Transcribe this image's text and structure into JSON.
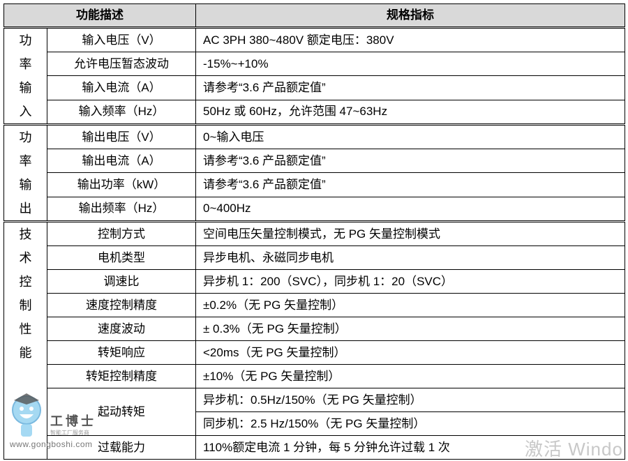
{
  "header": {
    "col1": "功能描述",
    "col2": "规格指标"
  },
  "groups": [
    {
      "label": [
        "功",
        "率",
        "输",
        "入"
      ],
      "rows": [
        {
          "name": "输入电压（V）",
          "value": "AC 3PH 380~480V 额定电压：380V"
        },
        {
          "name": "允许电压暂态波动",
          "value": "-15%~+10%"
        },
        {
          "name": "输入电流（A）",
          "value": "请参考“3.6 产品额定值”"
        },
        {
          "name": "输入频率（Hz）",
          "value": "50Hz 或 60Hz，允许范围 47~63Hz"
        }
      ]
    },
    {
      "label": [
        "功",
        "率",
        "输",
        "出"
      ],
      "rows": [
        {
          "name": "输出电压（V）",
          "value": "0~输入电压"
        },
        {
          "name": "输出电流（A）",
          "value": "请参考“3.6 产品额定值”"
        },
        {
          "name": "输出功率（kW）",
          "value": "请参考“3.6 产品额定值”"
        },
        {
          "name": "输出频率（Hz）",
          "value": "0~400Hz"
        }
      ]
    },
    {
      "label": [
        "技",
        "术",
        "控",
        "制",
        "性",
        "能"
      ],
      "rows": [
        {
          "name": "控制方式",
          "value": "空间电压矢量控制模式，无 PG 矢量控制模式"
        },
        {
          "name": "电机类型",
          "value": "异步电机、永磁同步电机"
        },
        {
          "name": "调速比",
          "value": "异步机 1：200（SVC），同步机 1：20（SVC）"
        },
        {
          "name": "速度控制精度",
          "value": "±0.2%（无 PG 矢量控制）"
        },
        {
          "name": "速度波动",
          "value": "± 0.3%（无 PG 矢量控制）"
        },
        {
          "name": "转矩响应",
          "value": "<20ms（无 PG 矢量控制）"
        },
        {
          "name": "转矩控制精度",
          "value": "±10%（无 PG 矢量控制）"
        },
        {
          "name": "起动转矩",
          "values": [
            "异步机：0.5Hz/150%（无 PG 矢量控制）",
            "同步机：2.5 Hz/150%（无 PG 矢量控制）"
          ]
        },
        {
          "name": "过载能力",
          "value": "110%额定电流 1 分钟，每 5 分钟允许过载 1 次"
        }
      ]
    }
  ],
  "watermark": {
    "brand": "工博士",
    "tagline": "智能工厂服务商",
    "url": "www.gongboshi.com"
  },
  "os_watermark": "激活 Windo"
}
